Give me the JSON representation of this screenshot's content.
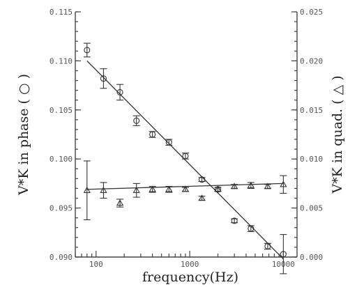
{
  "chart_data": {
    "type": "scatter",
    "xlabel": "frequency(Hz)",
    "ylabel_left": "V*K in phase ( ○ )",
    "ylabel_right": "V*K in quad. ( △ )",
    "xscale": "log",
    "xlim": [
      60,
      14000
    ],
    "ylim_left": [
      0.09,
      0.115
    ],
    "ylim_right": [
      0.0,
      0.025
    ],
    "x_ticks": [
      {
        "v": 100,
        "label": "100"
      },
      {
        "v": 1000,
        "label": "1000"
      },
      {
        "v": 10000,
        "label": "10000"
      }
    ],
    "y_left_ticks": [
      {
        "v": 0.09,
        "label": "0.090"
      },
      {
        "v": 0.095,
        "label": "0.095"
      },
      {
        "v": 0.1,
        "label": "0.100"
      },
      {
        "v": 0.105,
        "label": "0.105"
      },
      {
        "v": 0.11,
        "label": "0.110"
      },
      {
        "v": 0.115,
        "label": "0.115"
      }
    ],
    "y_right_ticks": [
      {
        "v": 0.0,
        "label": "0.000"
      },
      {
        "v": 0.005,
        "label": "0.005"
      },
      {
        "v": 0.01,
        "label": "0.010"
      },
      {
        "v": 0.015,
        "label": "0.015"
      },
      {
        "v": 0.02,
        "label": "0.020"
      },
      {
        "v": 0.025,
        "label": "0.025"
      }
    ],
    "grid": false,
    "series": [
      {
        "marker": "circle",
        "axis": "left",
        "points": [
          {
            "x": 80,
            "y": 0.1111,
            "err": 0.0007
          },
          {
            "x": 120,
            "y": 0.1082,
            "err": 0.001
          },
          {
            "x": 180,
            "y": 0.1068,
            "err": 0.0008
          },
          {
            "x": 270,
            "y": 0.1039,
            "err": 0.0005
          },
          {
            "x": 400,
            "y": 0.1025,
            "err": 0.0003
          },
          {
            "x": 600,
            "y": 0.1017,
            "err": 0.0003
          },
          {
            "x": 900,
            "y": 0.1003,
            "err": 0.0003
          },
          {
            "x": 1350,
            "y": 0.0979,
            "err": 0.0002
          },
          {
            "x": 2000,
            "y": 0.0969,
            "err": 0.0002
          },
          {
            "x": 3000,
            "y": 0.0937,
            "err": 0.0002
          },
          {
            "x": 4500,
            "y": 0.0929,
            "err": 0.0003
          },
          {
            "x": 6800,
            "y": 0.0911,
            "err": 0.0003
          },
          {
            "x": 10000,
            "y": 0.0903,
            "err": 0.002
          }
        ],
        "fit": [
          {
            "x": 80,
            "y": 0.11
          },
          {
            "x": 10000,
            "y": 0.0898
          }
        ]
      },
      {
        "marker": "triangle",
        "axis": "right",
        "points": [
          {
            "x": 80,
            "y": 0.0068,
            "err": 0.003
          },
          {
            "x": 120,
            "y": 0.0068,
            "err": 0.0008
          },
          {
            "x": 180,
            "y": 0.0055,
            "err": 0.0004
          },
          {
            "x": 270,
            "y": 0.0068,
            "err": 0.0007
          },
          {
            "x": 400,
            "y": 0.0069,
            "err": 0.0003
          },
          {
            "x": 600,
            "y": 0.0069,
            "err": 0.0003
          },
          {
            "x": 900,
            "y": 0.0069,
            "err": 0.0002
          },
          {
            "x": 1350,
            "y": 0.006,
            "err": 0.0002
          },
          {
            "x": 2000,
            "y": 0.0069,
            "err": 0.0002
          },
          {
            "x": 3000,
            "y": 0.0072,
            "err": 0.0002
          },
          {
            "x": 4500,
            "y": 0.0073,
            "err": 0.0003
          },
          {
            "x": 6800,
            "y": 0.0072,
            "err": 0.0002
          },
          {
            "x": 10000,
            "y": 0.0074,
            "err": 0.0009
          }
        ],
        "fit": [
          {
            "x": 80,
            "y": 0.0069
          },
          {
            "x": 10000,
            "y": 0.0075
          }
        ]
      }
    ]
  }
}
